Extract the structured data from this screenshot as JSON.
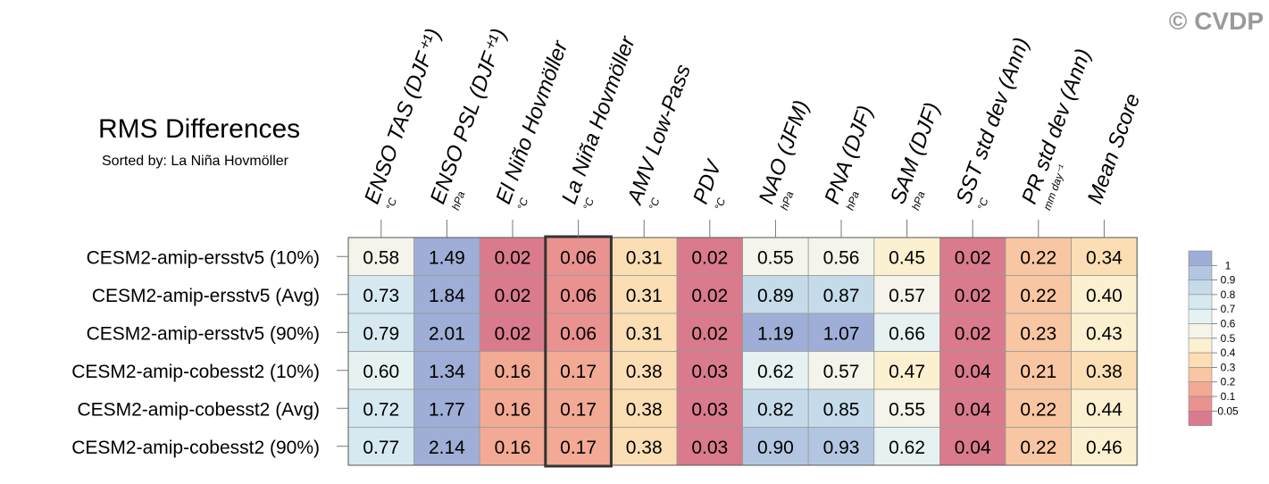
{
  "copyright": "© CVDP",
  "chart_data": {
    "type": "heatmap",
    "title": "RMS Differences",
    "subtitle": "Sorted by: La Niña Hovmöller",
    "highlighted_column": "La Niña Hovmöller",
    "columns": [
      {
        "label": "ENSO TAS (DJF⁺¹)",
        "unit": "°C"
      },
      {
        "label": "ENSO PSL (DJF⁺¹)",
        "unit": "hPa"
      },
      {
        "label": "El Niño Hovmöller",
        "unit": "°C"
      },
      {
        "label": "La Niña Hovmöller",
        "unit": "°C"
      },
      {
        "label": "AMV Low-Pass",
        "unit": "°C"
      },
      {
        "label": "PDV",
        "unit": "°C"
      },
      {
        "label": "NAO (JFM)",
        "unit": "hPa"
      },
      {
        "label": "PNA (DJF)",
        "unit": "hPa"
      },
      {
        "label": "SAM (DJF)",
        "unit": "hPa"
      },
      {
        "label": "SST std dev (Ann)",
        "unit": "°C"
      },
      {
        "label": "PR std dev (Ann)",
        "unit": "mm day⁻¹"
      },
      {
        "label": "Mean Score",
        "unit": ""
      }
    ],
    "rows": [
      "CESM2-amip-ersstv5 (10%)",
      "CESM2-amip-ersstv5 (Avg)",
      "CESM2-amip-ersstv5 (90%)",
      "CESM2-amip-cobesst2 (10%)",
      "CESM2-amip-cobesst2 (Avg)",
      "CESM2-amip-cobesst2 (90%)"
    ],
    "values": [
      [
        "0.58",
        "1.49",
        "0.02",
        "0.06",
        "0.31",
        "0.02",
        "0.55",
        "0.56",
        "0.45",
        "0.02",
        "0.22",
        "0.34"
      ],
      [
        "0.73",
        "1.84",
        "0.02",
        "0.06",
        "0.31",
        "0.02",
        "0.89",
        "0.87",
        "0.57",
        "0.02",
        "0.22",
        "0.40"
      ],
      [
        "0.79",
        "2.01",
        "0.02",
        "0.06",
        "0.31",
        "0.02",
        "1.19",
        "1.07",
        "0.66",
        "0.02",
        "0.23",
        "0.43"
      ],
      [
        "0.60",
        "1.34",
        "0.16",
        "0.17",
        "0.38",
        "0.03",
        "0.62",
        "0.57",
        "0.47",
        "0.04",
        "0.21",
        "0.38"
      ],
      [
        "0.72",
        "1.77",
        "0.16",
        "0.17",
        "0.38",
        "0.03",
        "0.82",
        "0.85",
        "0.55",
        "0.04",
        "0.22",
        "0.44"
      ],
      [
        "0.77",
        "2.14",
        "0.16",
        "0.17",
        "0.38",
        "0.03",
        "0.90",
        "0.93",
        "0.62",
        "0.04",
        "0.22",
        "0.46"
      ]
    ],
    "colorbar": {
      "labels": [
        "1",
        "0.9",
        "0.8",
        "0.7",
        "0.6",
        "0.5",
        "0.4",
        "0.3",
        "0.2",
        "0.1",
        "0.05"
      ],
      "bins": [
        {
          "min": 1.0,
          "color": "#9faed6"
        },
        {
          "min": 0.9,
          "color": "#b3c6e1"
        },
        {
          "min": 0.8,
          "color": "#c6dbea"
        },
        {
          "min": 0.7,
          "color": "#d7e9f0"
        },
        {
          "min": 0.6,
          "color": "#e6f2f2"
        },
        {
          "min": 0.5,
          "color": "#f4f4ea"
        },
        {
          "min": 0.4,
          "color": "#fbf0d0"
        },
        {
          "min": 0.3,
          "color": "#fbdeb4"
        },
        {
          "min": 0.2,
          "color": "#f8c6a2"
        },
        {
          "min": 0.1,
          "color": "#f2aa94"
        },
        {
          "min": 0.05,
          "color": "#ea9290"
        },
        {
          "min": 0.0,
          "color": "#d97b8c"
        }
      ]
    }
  }
}
